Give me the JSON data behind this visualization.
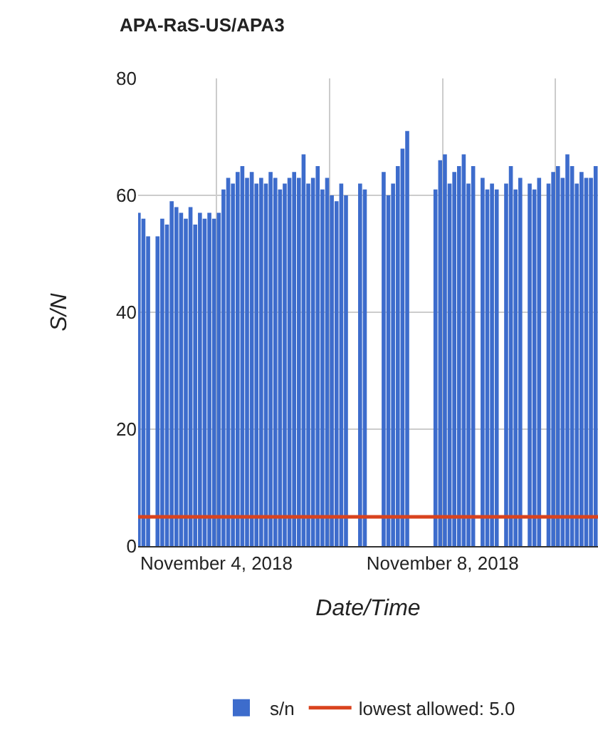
{
  "chart_data": {
    "type": "bar",
    "title": "APA-RaS-US/APA3",
    "xlabel": "Date/Time",
    "ylabel": "S/N",
    "x": [
      "2018-11-02T15:00",
      "2018-11-02T17:00",
      "2018-11-02T19:00",
      "2018-11-02T21:00",
      "2018-11-02T23:00",
      "2018-11-03T01:00",
      "2018-11-03T03:00",
      "2018-11-03T05:00",
      "2018-11-03T07:00",
      "2018-11-03T09:00",
      "2018-11-03T11:00",
      "2018-11-03T13:00",
      "2018-11-03T15:00",
      "2018-11-03T17:00",
      "2018-11-03T19:00",
      "2018-11-03T21:00",
      "2018-11-03T23:00",
      "2018-11-04T01:00",
      "2018-11-04T03:00",
      "2018-11-04T05:00",
      "2018-11-04T07:00",
      "2018-11-04T09:00",
      "2018-11-04T11:00",
      "2018-11-04T13:00",
      "2018-11-04T15:00",
      "2018-11-04T17:00",
      "2018-11-04T19:00",
      "2018-11-04T21:00",
      "2018-11-04T23:00",
      "2018-11-05T01:00",
      "2018-11-05T03:00",
      "2018-11-05T05:00",
      "2018-11-05T07:00",
      "2018-11-05T09:00",
      "2018-11-05T11:00",
      "2018-11-05T13:00",
      "2018-11-05T15:00",
      "2018-11-05T17:00",
      "2018-11-05T19:00",
      "2018-11-05T21:00",
      "2018-11-05T23:00",
      "2018-11-06T01:00",
      "2018-11-06T03:00",
      "2018-11-06T05:00",
      "2018-11-06T07:00",
      "2018-11-06T09:00",
      "2018-11-06T11:00",
      "2018-11-06T13:00",
      "2018-11-06T15:00",
      "2018-11-06T17:00",
      "2018-11-06T19:00",
      "2018-11-06T21:00",
      "2018-11-06T23:00",
      "2018-11-07T01:00",
      "2018-11-07T03:00",
      "2018-11-07T05:00",
      "2018-11-07T07:00",
      "2018-11-07T09:00",
      "2018-11-07T11:00",
      "2018-11-07T13:00",
      "2018-11-07T15:00",
      "2018-11-07T17:00",
      "2018-11-07T19:00",
      "2018-11-07T21:00",
      "2018-11-07T23:00",
      "2018-11-08T01:00",
      "2018-11-08T03:00",
      "2018-11-08T05:00",
      "2018-11-08T07:00",
      "2018-11-08T09:00",
      "2018-11-08T11:00",
      "2018-11-08T13:00",
      "2018-11-08T15:00",
      "2018-11-08T17:00",
      "2018-11-08T19:00",
      "2018-11-08T21:00",
      "2018-11-08T23:00",
      "2018-11-09T01:00",
      "2018-11-09T03:00",
      "2018-11-09T05:00",
      "2018-11-09T07:00",
      "2018-11-09T09:00",
      "2018-11-09T11:00",
      "2018-11-09T13:00",
      "2018-11-09T15:00",
      "2018-11-09T17:00",
      "2018-11-09T19:00",
      "2018-11-09T21:00",
      "2018-11-09T23:00",
      "2018-11-10T01:00",
      "2018-11-10T03:00",
      "2018-11-10T05:00",
      "2018-11-10T07:00",
      "2018-11-10T09:00",
      "2018-11-10T11:00",
      "2018-11-10T13:00",
      "2018-11-10T15:00",
      "2018-11-10T17:00"
    ],
    "series": [
      {
        "name": "s/n",
        "color": "#3d6ccc",
        "values": [
          57,
          56,
          53,
          null,
          53,
          56,
          55,
          59,
          58,
          57,
          56,
          58,
          55,
          57,
          56,
          57,
          56,
          57,
          61,
          63,
          62,
          64,
          65,
          63,
          64,
          62,
          63,
          62,
          64,
          63,
          61,
          62,
          63,
          64,
          63,
          67,
          62,
          63,
          65,
          61,
          63,
          60,
          59,
          62,
          60,
          null,
          null,
          62,
          61,
          null,
          null,
          null,
          64,
          60,
          62,
          65,
          68,
          71,
          null,
          null,
          null,
          null,
          null,
          61,
          66,
          67,
          62,
          64,
          65,
          67,
          62,
          65,
          null,
          63,
          61,
          62,
          61,
          null,
          62,
          65,
          61,
          63,
          null,
          62,
          61,
          63,
          null,
          62,
          64,
          65,
          63,
          67,
          65,
          62,
          64,
          63,
          63,
          65
        ]
      }
    ],
    "ref_lines": [
      {
        "axis": "y",
        "value": 5.0,
        "label": "lowest allowed: 5.0",
        "color": "#d9431e",
        "line_style": "solid"
      }
    ],
    "xlim": [
      "2018-11-02T14:45",
      "2018-11-10T18:00"
    ],
    "xticks": [
      {
        "value": "2018-11-04",
        "label": "November 4, 2018"
      },
      {
        "value": "2018-11-06",
        "label": null
      },
      {
        "value": "2018-11-08",
        "label": "November 8, 2018"
      },
      {
        "value": "2018-11-10",
        "label": null
      }
    ],
    "ylim": [
      0,
      80
    ],
    "yticks": [
      0,
      20,
      40,
      60,
      80
    ],
    "grid": true,
    "legend": "bottom"
  }
}
